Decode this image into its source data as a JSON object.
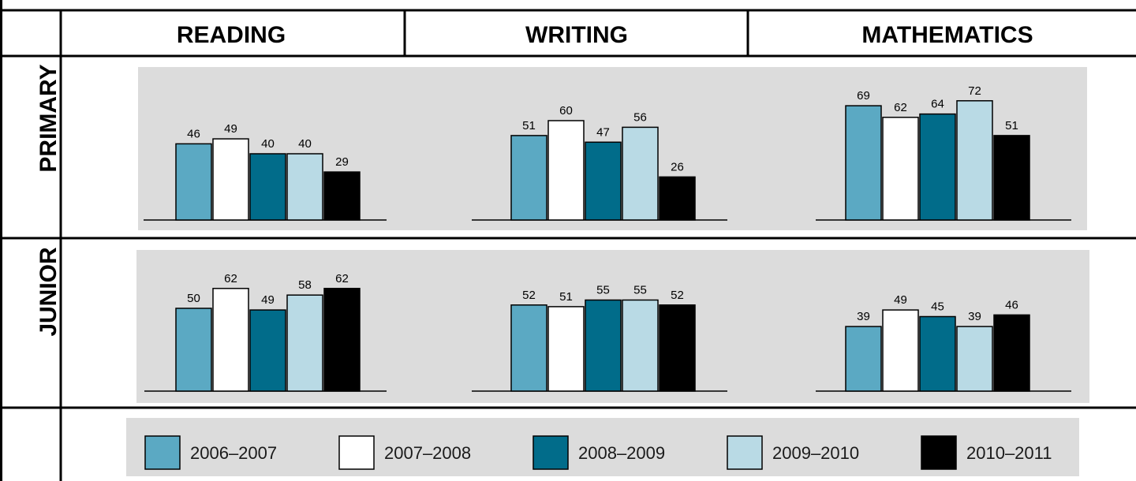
{
  "columns": [
    "READING",
    "WRITING",
    "MATHEMATICS"
  ],
  "rows": [
    "PRIMARY",
    "JUNIOR"
  ],
  "legend": [
    {
      "label": "2006–2007",
      "color": "#5ba9c3"
    },
    {
      "label": "2007–2008",
      "color": "#ffffff"
    },
    {
      "label": "2008–2009",
      "color": "#016c8a"
    },
    {
      "label": "2009–2010",
      "color": "#b9dae5"
    },
    {
      "label": "2010–2011",
      "color": "#000000"
    }
  ],
  "panel_color": "#dcdcdc",
  "chart_data": [
    {
      "type": "bar",
      "row": "PRIMARY",
      "column": "READING",
      "categories": [
        "2006–2007",
        "2007–2008",
        "2008–2009",
        "2009–2010",
        "2010–2011"
      ],
      "values": [
        46,
        49,
        40,
        40,
        29
      ]
    },
    {
      "type": "bar",
      "row": "PRIMARY",
      "column": "WRITING",
      "categories": [
        "2006–2007",
        "2007–2008",
        "2008–2009",
        "2009–2010",
        "2010–2011"
      ],
      "values": [
        51,
        60,
        47,
        56,
        26
      ]
    },
    {
      "type": "bar",
      "row": "PRIMARY",
      "column": "MATHEMATICS",
      "categories": [
        "2006–2007",
        "2007–2008",
        "2008–2009",
        "2009–2010",
        "2010–2011"
      ],
      "values": [
        69,
        62,
        64,
        72,
        51
      ]
    },
    {
      "type": "bar",
      "row": "JUNIOR",
      "column": "READING",
      "categories": [
        "2006–2007",
        "2007–2008",
        "2008–2009",
        "2009–2010",
        "2010–2011"
      ],
      "values": [
        50,
        62,
        49,
        58,
        62
      ]
    },
    {
      "type": "bar",
      "row": "JUNIOR",
      "column": "WRITING",
      "categories": [
        "2006–2007",
        "2007–2008",
        "2008–2009",
        "2009–2010",
        "2010–2011"
      ],
      "values": [
        52,
        51,
        55,
        55,
        52
      ]
    },
    {
      "type": "bar",
      "row": "JUNIOR",
      "column": "MATHEMATICS",
      "categories": [
        "2006–2007",
        "2007–2008",
        "2008–2009",
        "2009–2010",
        "2010–2011"
      ],
      "values": [
        39,
        49,
        45,
        39,
        46
      ]
    }
  ]
}
